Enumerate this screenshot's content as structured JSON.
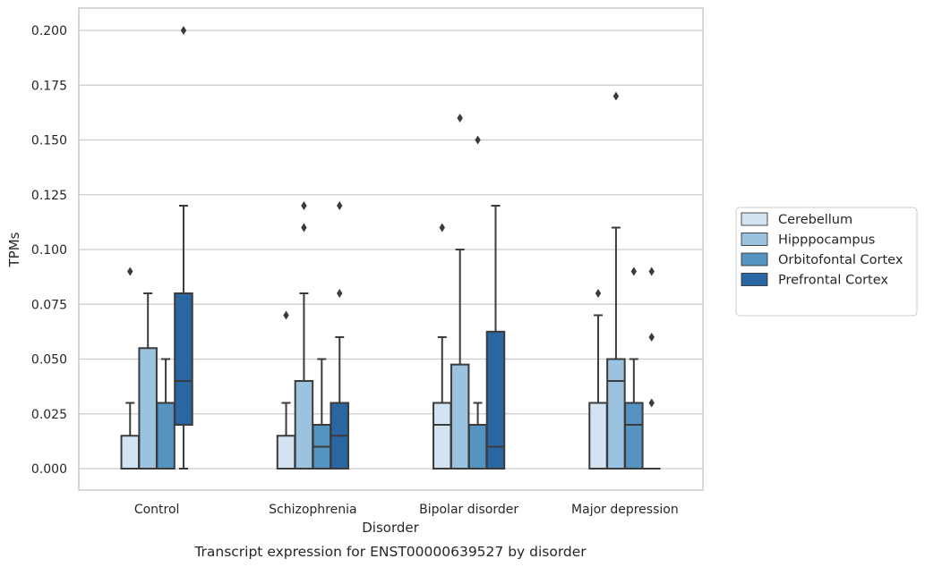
{
  "chart_data": {
    "type": "box",
    "xlabel": "Disorder",
    "ylabel": "TPMs",
    "caption": "Transcript expression for ENST00000639527 by disorder",
    "ylim": [
      -0.01,
      0.21
    ],
    "yticks": [
      0.0,
      0.025,
      0.05,
      0.075,
      0.1,
      0.125,
      0.15,
      0.175,
      0.2
    ],
    "ytick_labels": [
      "0.000",
      "0.025",
      "0.050",
      "0.075",
      "0.100",
      "0.125",
      "0.150",
      "0.175",
      "0.200"
    ],
    "grid": "horizontal",
    "legend_position": "right",
    "categories": [
      "Control",
      "Schizophrenia",
      "Bipolar disorder",
      "Major depression"
    ],
    "series": [
      {
        "name": "Cerebellum",
        "color": "#d4e3f2",
        "boxes": [
          {
            "q1": 0,
            "median": 0,
            "q3": 0.015,
            "whisker_low": 0,
            "whisker_high": 0.03,
            "outliers": [
              0.09
            ]
          },
          {
            "q1": 0,
            "median": 0,
            "q3": 0.015,
            "whisker_low": 0,
            "whisker_high": 0.03,
            "outliers": [
              0.07
            ]
          },
          {
            "q1": 0,
            "median": 0.02,
            "q3": 0.03,
            "whisker_low": 0,
            "whisker_high": 0.06,
            "outliers": [
              0.11
            ]
          },
          {
            "q1": 0,
            "median": 0,
            "q3": 0.03,
            "whisker_low": 0,
            "whisker_high": 0.07,
            "outliers": [
              0.08
            ]
          }
        ]
      },
      {
        "name": "Hipppocampus",
        "color": "#9bc3df",
        "boxes": [
          {
            "q1": 0,
            "median": 0,
            "q3": 0.055,
            "whisker_low": 0,
            "whisker_high": 0.08,
            "outliers": []
          },
          {
            "q1": 0,
            "median": 0,
            "q3": 0.04,
            "whisker_low": 0,
            "whisker_high": 0.08,
            "outliers": [
              0.11,
              0.12
            ]
          },
          {
            "q1": 0,
            "median": 0,
            "q3": 0.0475,
            "whisker_low": 0,
            "whisker_high": 0.1,
            "outliers": [
              0.16
            ]
          },
          {
            "q1": 0,
            "median": 0.04,
            "q3": 0.05,
            "whisker_low": 0,
            "whisker_high": 0.11,
            "outliers": [
              0.17
            ]
          }
        ]
      },
      {
        "name": "Orbitofontal Cortex",
        "color": "#5593c1",
        "boxes": [
          {
            "q1": 0,
            "median": 0,
            "q3": 0.03,
            "whisker_low": 0,
            "whisker_high": 0.05,
            "outliers": []
          },
          {
            "q1": 0,
            "median": 0.01,
            "q3": 0.02,
            "whisker_low": 0,
            "whisker_high": 0.05,
            "outliers": []
          },
          {
            "q1": 0,
            "median": 0,
            "q3": 0.02,
            "whisker_low": 0,
            "whisker_high": 0.03,
            "outliers": [
              0.15
            ]
          },
          {
            "q1": 0,
            "median": 0.02,
            "q3": 0.03,
            "whisker_low": 0,
            "whisker_high": 0.05,
            "outliers": [
              0.09
            ]
          }
        ]
      },
      {
        "name": "Prefrontal Cortex",
        "color": "#2a67a2",
        "boxes": [
          {
            "q1": 0.02,
            "median": 0.04,
            "q3": 0.08,
            "whisker_low": 0,
            "whisker_high": 0.12,
            "outliers": [
              0.2
            ]
          },
          {
            "q1": 0,
            "median": 0.015,
            "q3": 0.03,
            "whisker_low": 0,
            "whisker_high": 0.06,
            "outliers": [
              0.08,
              0.12
            ]
          },
          {
            "q1": 0,
            "median": 0.01,
            "q3": 0.0625,
            "whisker_low": 0,
            "whisker_high": 0.12,
            "outliers": []
          },
          {
            "q1": 0,
            "median": 0,
            "q3": 0,
            "whisker_low": 0,
            "whisker_high": 0,
            "outliers": [
              0.03,
              0.06,
              0.09
            ]
          }
        ]
      }
    ]
  }
}
